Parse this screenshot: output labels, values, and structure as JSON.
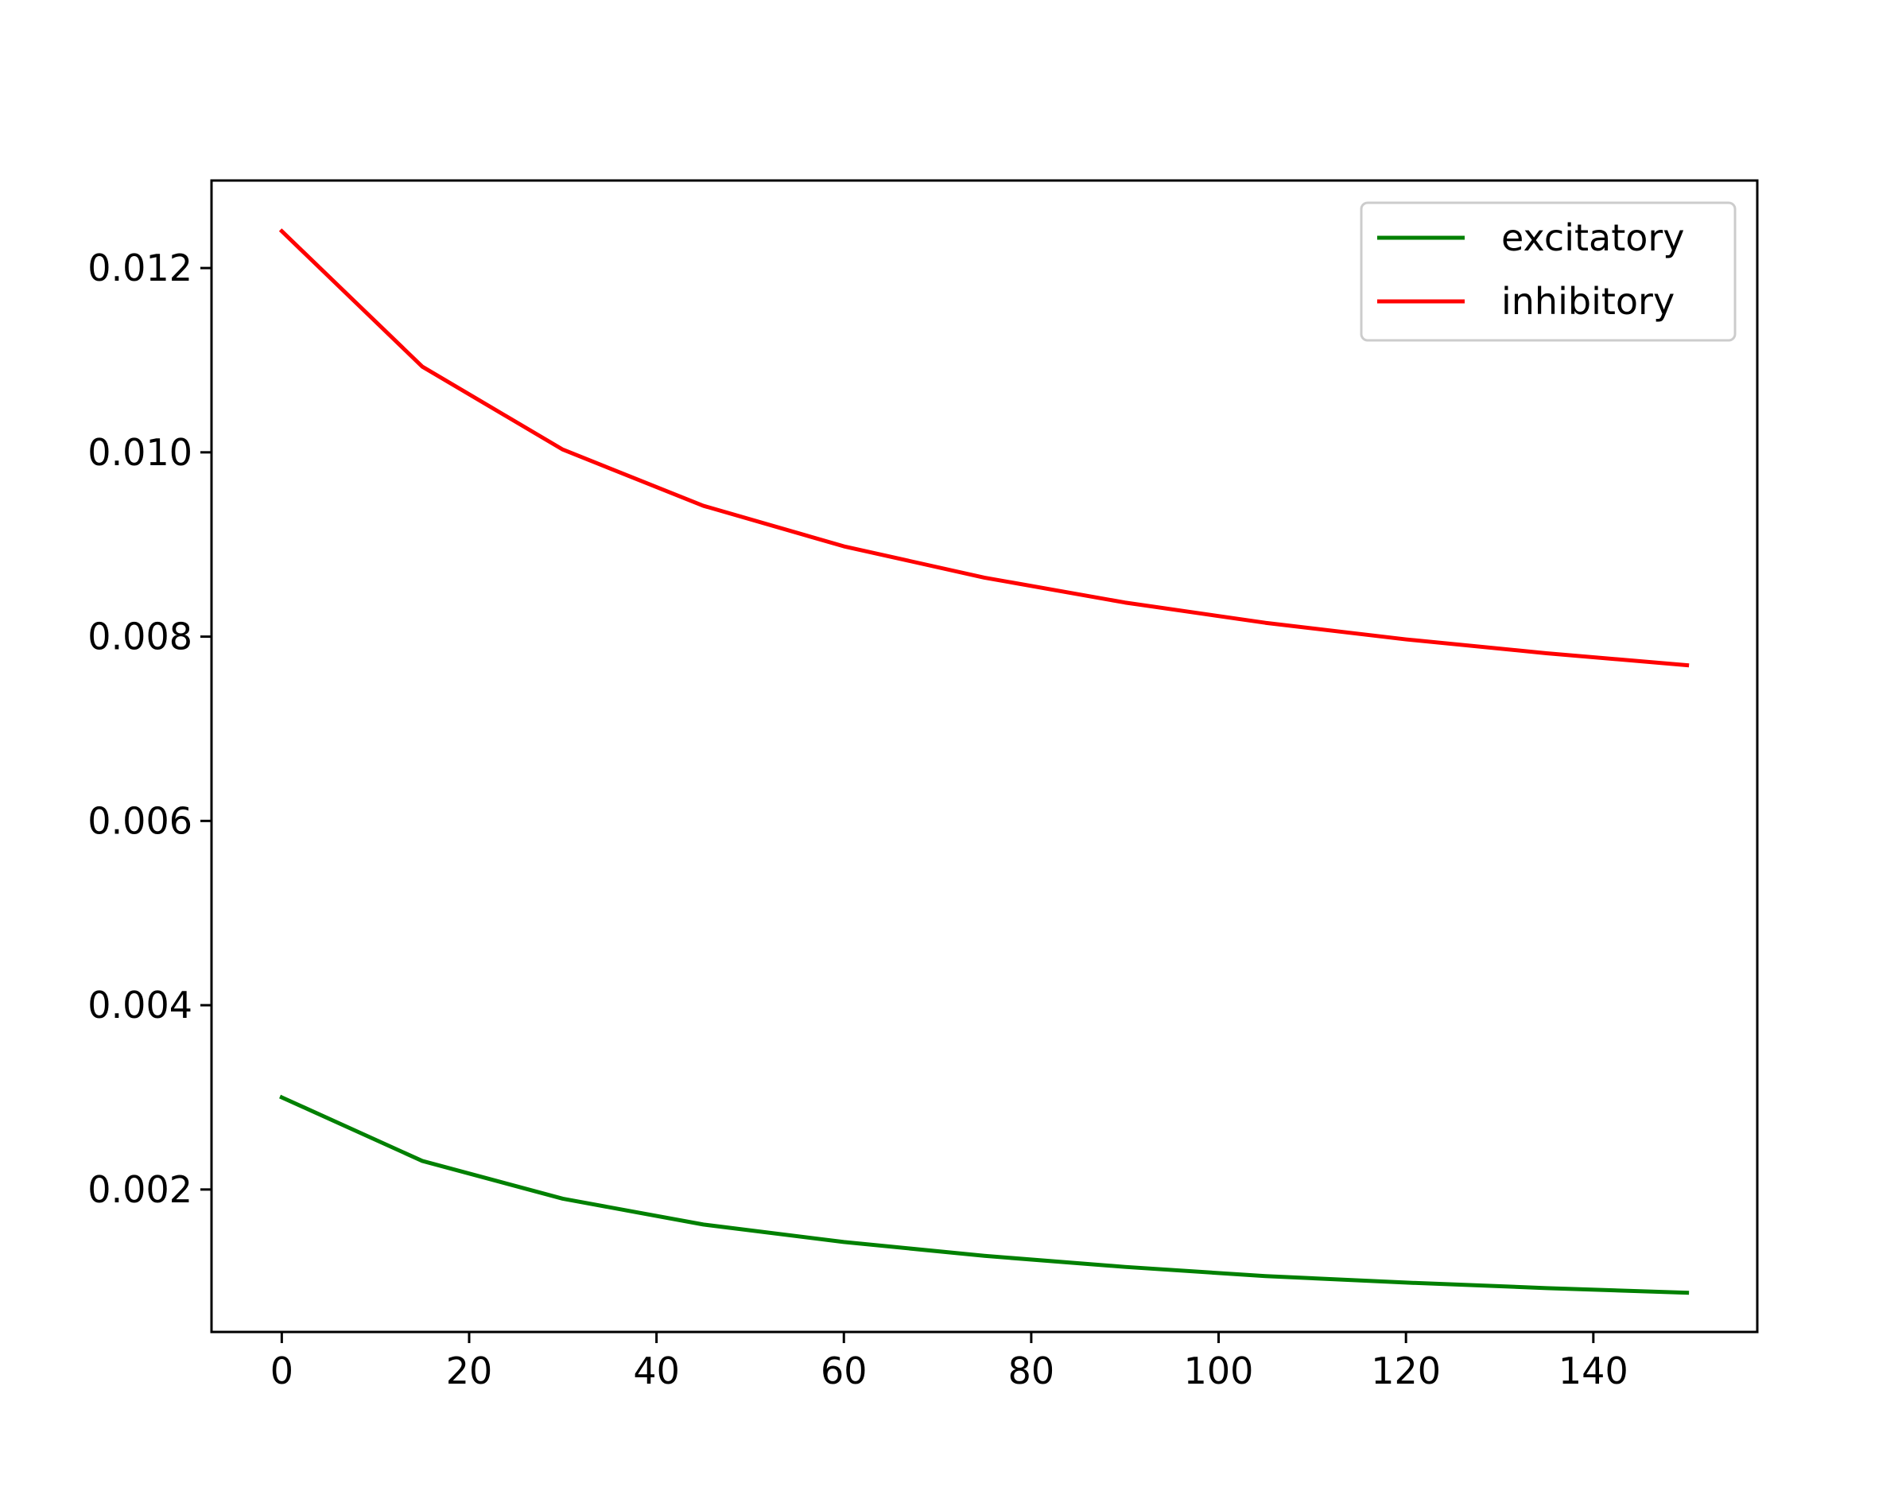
{
  "chart_data": {
    "type": "line",
    "title": "",
    "xlabel": "",
    "ylabel": "",
    "x": [
      0,
      15,
      30,
      45,
      60,
      75,
      90,
      105,
      120,
      135,
      150
    ],
    "series": [
      {
        "name": "excitatory",
        "color": "#008000",
        "values": [
          0.003,
          0.00231,
          0.0019,
          0.00162,
          0.00143,
          0.00128,
          0.00116,
          0.00106,
          0.00099,
          0.00093,
          0.00088
        ]
      },
      {
        "name": "inhibitory",
        "color": "#ff0000",
        "values": [
          0.0124,
          0.01093,
          0.01003,
          0.00942,
          0.00898,
          0.00864,
          0.00837,
          0.00815,
          0.00797,
          0.00782,
          0.00769
        ]
      }
    ],
    "xlim": [
      -7.5,
      157.5
    ],
    "ylim": [
      0.000454,
      0.01295
    ],
    "xticks": [
      0,
      20,
      40,
      60,
      80,
      100,
      120,
      140
    ],
    "xtick_labels": [
      "0",
      "20",
      "40",
      "60",
      "80",
      "100",
      "120",
      "140"
    ],
    "yticks": [
      0.002,
      0.004,
      0.006,
      0.008,
      0.01,
      0.012
    ],
    "ytick_labels": [
      "0.002",
      "0.004",
      "0.006",
      "0.008",
      "0.010",
      "0.012"
    ],
    "grid": false,
    "legend_position": "top-right"
  }
}
